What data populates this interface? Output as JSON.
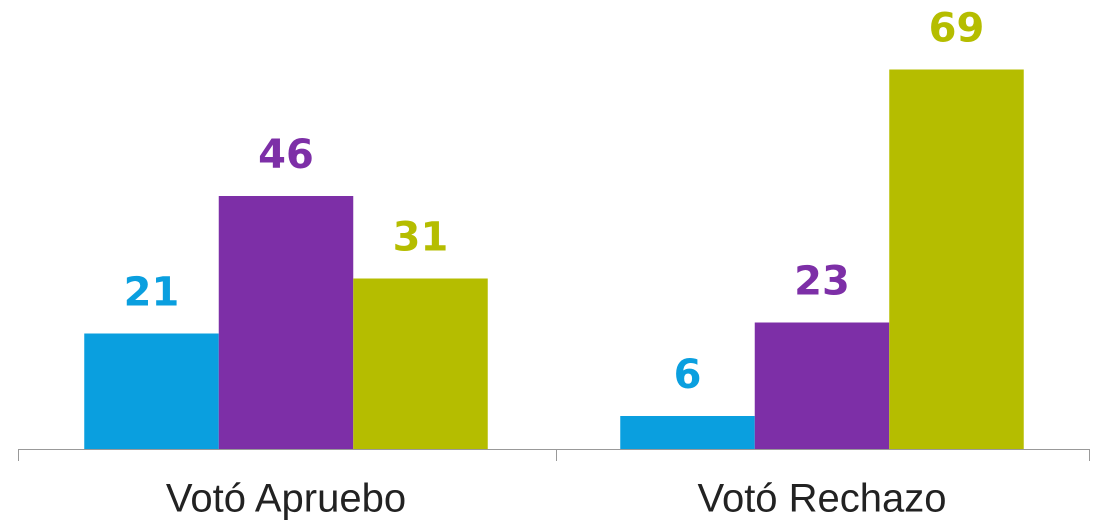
{
  "chart_data": {
    "type": "bar",
    "categories": [
      "Votó Apruebo",
      "Votó Rechazo"
    ],
    "series": [
      {
        "color": "#0a9fdf",
        "values": [
          21,
          6
        ]
      },
      {
        "color": "#7d2fa7",
        "values": [
          46,
          23
        ]
      },
      {
        "color": "#b5bd00",
        "values": [
          31,
          69
        ]
      }
    ],
    "ylim": [
      0,
      80
    ]
  }
}
